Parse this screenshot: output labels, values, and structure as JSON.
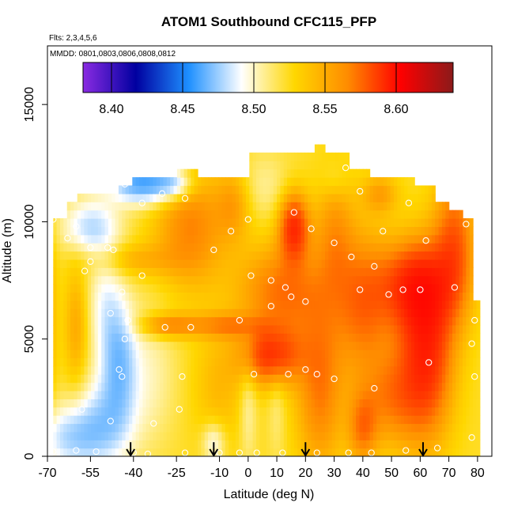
{
  "chart_data": {
    "type": "heatmap",
    "title": "ATOM1 Southbound CFC115_PFP",
    "subtitle_flights": "Flts: 2,3,4,5,6",
    "subtitle_dates": "MMDD: 0801,0803,0806,0808,0812",
    "xlabel": "Latitude (deg N)",
    "ylabel": "Altitude (m)",
    "xlim": [
      -70,
      85
    ],
    "ylim": [
      0,
      17500
    ],
    "x_ticks": [
      -70,
      -55,
      -40,
      -25,
      -10,
      0,
      10,
      20,
      30,
      40,
      50,
      60,
      70,
      80
    ],
    "x_tick_labels": [
      "-70",
      "-55",
      "-40",
      "-25",
      "-10",
      "0",
      "10",
      "20",
      "30",
      "40",
      "50",
      "60",
      "70",
      "80"
    ],
    "y_ticks": [
      0,
      5000,
      10000,
      15000
    ],
    "y_tick_labels": [
      "0",
      "5000",
      "10000",
      "15000"
    ],
    "colorbar": {
      "min": 8.38,
      "max": 8.64,
      "ticks": [
        8.4,
        8.45,
        8.5,
        8.55,
        8.6
      ],
      "tick_labels": [
        "8.40",
        "8.45",
        "8.50",
        "8.55",
        "8.60"
      ],
      "colors": [
        "#8a2be2",
        "#0000a0",
        "#1e90ff",
        "#ffffff",
        "#ffd700",
        "#ff8c00",
        "#ff0000",
        "#8b1a1a"
      ]
    },
    "arrows_latitude": [
      -41,
      -12,
      20,
      61
    ],
    "samples": [
      {
        "lat": -68,
        "alt": 200
      },
      {
        "lat": -60,
        "alt": 250
      },
      {
        "lat": -53,
        "alt": 200
      },
      {
        "lat": -40,
        "alt": 150
      },
      {
        "lat": -35,
        "alt": 100
      },
      {
        "lat": -22,
        "alt": 150
      },
      {
        "lat": -10,
        "alt": 150
      },
      {
        "lat": -3,
        "alt": 150
      },
      {
        "lat": 3,
        "alt": 150
      },
      {
        "lat": 12,
        "alt": 150
      },
      {
        "lat": 24,
        "alt": 150
      },
      {
        "lat": 35,
        "alt": 150
      },
      {
        "lat": 43,
        "alt": 150
      },
      {
        "lat": 55,
        "alt": 250
      },
      {
        "lat": 66,
        "alt": 350
      },
      {
        "lat": 78,
        "alt": 800
      },
      {
        "lat": -58,
        "alt": 2000
      },
      {
        "lat": -48,
        "alt": 1500
      },
      {
        "lat": -33,
        "alt": 1400
      },
      {
        "lat": -24,
        "alt": 2000
      },
      {
        "lat": -45,
        "alt": 3700
      },
      {
        "lat": -44,
        "alt": 3400
      },
      {
        "lat": -23,
        "alt": 3400
      },
      {
        "lat": -43,
        "alt": 5000
      },
      {
        "lat": -42,
        "alt": 5800
      },
      {
        "lat": -44,
        "alt": 7000
      },
      {
        "lat": -37,
        "alt": 7700
      },
      {
        "lat": -29,
        "alt": 5500
      },
      {
        "lat": -48,
        "alt": 6100
      },
      {
        "lat": -57,
        "alt": 7900
      },
      {
        "lat": -55,
        "alt": 8300
      },
      {
        "lat": -60,
        "alt": 9800
      },
      {
        "lat": -55,
        "alt": 8900
      },
      {
        "lat": -49,
        "alt": 8900
      },
      {
        "lat": -47,
        "alt": 8800
      },
      {
        "lat": -63,
        "alt": 9300
      },
      {
        "lat": -68,
        "alt": 10100
      },
      {
        "lat": -43,
        "alt": 11600
      },
      {
        "lat": -37,
        "alt": 10800
      },
      {
        "lat": -30,
        "alt": 11200
      },
      {
        "lat": -22,
        "alt": 11000
      },
      {
        "lat": -6,
        "alt": 9600
      },
      {
        "lat": 1,
        "alt": 7700
      },
      {
        "lat": 8,
        "alt": 7500
      },
      {
        "lat": 16,
        "alt": 10400
      },
      {
        "lat": 22,
        "alt": 9700
      },
      {
        "lat": 30,
        "alt": 9100
      },
      {
        "lat": 20,
        "alt": 6600
      },
      {
        "lat": 15,
        "alt": 6800
      },
      {
        "lat": 13,
        "alt": 7200
      },
      {
        "lat": 8,
        "alt": 6400
      },
      {
        "lat": -3,
        "alt": 5800
      },
      {
        "lat": -20,
        "alt": 5500
      },
      {
        "lat": 2,
        "alt": 3500
      },
      {
        "lat": 14,
        "alt": 3500
      },
      {
        "lat": 20,
        "alt": 3700
      },
      {
        "lat": 24,
        "alt": 3500
      },
      {
        "lat": 30,
        "alt": 3300
      },
      {
        "lat": 44,
        "alt": 2900
      },
      {
        "lat": 49,
        "alt": 6900
      },
      {
        "lat": 54,
        "alt": 7100
      },
      {
        "lat": 60,
        "alt": 7100
      },
      {
        "lat": 44,
        "alt": 8100
      },
      {
        "lat": 47,
        "alt": 9600
      },
      {
        "lat": 56,
        "alt": 10800
      },
      {
        "lat": 62,
        "alt": 9200
      },
      {
        "lat": 72,
        "alt": 7200
      },
      {
        "lat": 76,
        "alt": 9900
      },
      {
        "lat": 79,
        "alt": 5800
      },
      {
        "lat": 78,
        "alt": 4800
      },
      {
        "lat": 79,
        "alt": 3400
      },
      {
        "lat": 63,
        "alt": 4000
      },
      {
        "lat": 34,
        "alt": 12300
      },
      {
        "lat": 39,
        "alt": 11300
      },
      {
        "lat": 36,
        "alt": 8500
      },
      {
        "lat": 39,
        "alt": 7100
      },
      {
        "lat": 0,
        "alt": 10100
      },
      {
        "lat": -12,
        "alt": 8800
      }
    ]
  }
}
